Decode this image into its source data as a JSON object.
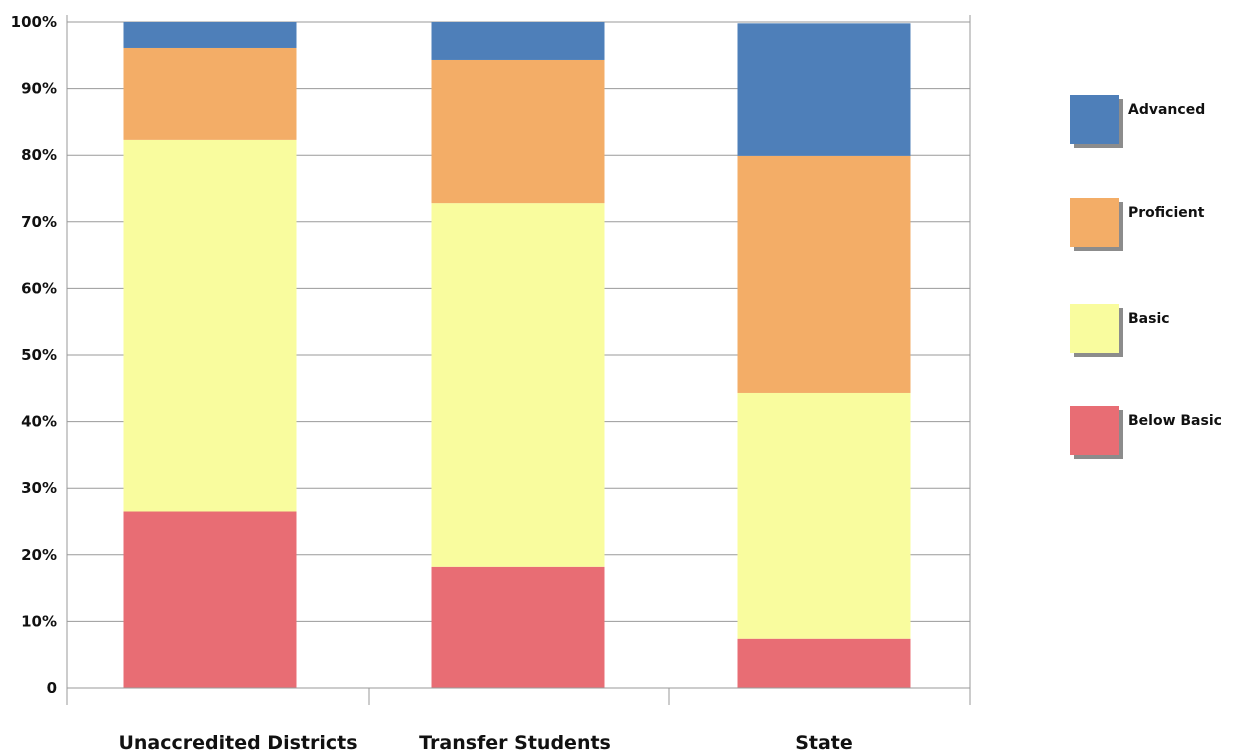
{
  "chart_data": {
    "type": "bar",
    "stacked": true,
    "orientation": "vertical",
    "categories": [
      "Unaccredited Districts",
      "Transfer Students",
      "State"
    ],
    "series": [
      {
        "name": "Below Basic",
        "color": "#e86d74",
        "values": [
          26.5,
          18.2,
          7.4
        ]
      },
      {
        "name": "Basic",
        "color": "#f9fc9e",
        "values": [
          55.8,
          54.6,
          36.9
        ]
      },
      {
        "name": "Proficient",
        "color": "#f3ad67",
        "values": [
          13.8,
          21.5,
          35.6
        ]
      },
      {
        "name": "Advanced",
        "color": "#4e7fb9",
        "values": [
          3.9,
          5.7,
          19.9
        ]
      }
    ],
    "ylim": [
      0,
      100
    ],
    "yticks": [
      {
        "value": 0,
        "label": "0"
      },
      {
        "value": 10,
        "label": "10%"
      },
      {
        "value": 20,
        "label": "20%"
      },
      {
        "value": 30,
        "label": "30%"
      },
      {
        "value": 40,
        "label": "40%"
      },
      {
        "value": 50,
        "label": "50%"
      },
      {
        "value": 60,
        "label": "60%"
      },
      {
        "value": 70,
        "label": "70%"
      },
      {
        "value": 80,
        "label": "80%"
      },
      {
        "value": 90,
        "label": "90%"
      },
      {
        "value": 100,
        "label": "100%"
      }
    ],
    "title": "",
    "xlabel": "",
    "ylabel": "",
    "grid": true,
    "legend_position": "right",
    "legend_order": [
      "Advanced",
      "Proficient",
      "Basic",
      "Below Basic"
    ]
  }
}
